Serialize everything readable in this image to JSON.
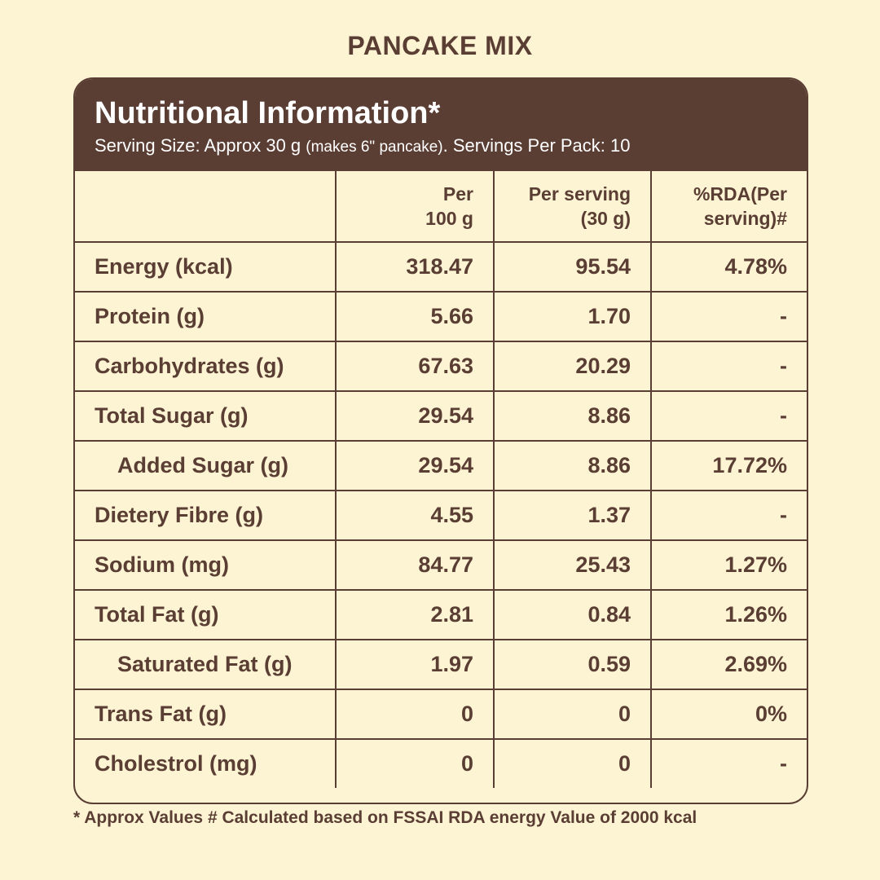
{
  "product_name": "PANCAKE MIX",
  "title": "Nutritional Information*",
  "serving_size_label": "Serving Size: Approx 30 g",
  "serving_note": "(makes 6\" pancake)",
  "servings_per_pack": ". Servings Per Pack: 10",
  "columns": [
    "",
    "Per\n100 g",
    "Per serving\n(30 g)",
    "%RDA(Per\nserving)#"
  ],
  "rows": [
    {
      "name": "Energy (kcal)",
      "per100": "318.47",
      "serving": "95.54",
      "rda": "4.78%",
      "indent": false
    },
    {
      "name": "Protein (g)",
      "per100": "5.66",
      "serving": "1.70",
      "rda": "-",
      "indent": false
    },
    {
      "name": "Carbohydrates (g)",
      "per100": "67.63",
      "serving": "20.29",
      "rda": "-",
      "indent": false
    },
    {
      "name": "Total Sugar (g)",
      "per100": "29.54",
      "serving": "8.86",
      "rda": "-",
      "indent": false
    },
    {
      "name": "Added Sugar (g)",
      "per100": "29.54",
      "serving": "8.86",
      "rda": "17.72%",
      "indent": true
    },
    {
      "name": "Dietery Fibre (g)",
      "per100": "4.55",
      "serving": "1.37",
      "rda": "-",
      "indent": false
    },
    {
      "name": "Sodium (mg)",
      "per100": "84.77",
      "serving": "25.43",
      "rda": "1.27%",
      "indent": false
    },
    {
      "name": "Total Fat (g)",
      "per100": "2.81",
      "serving": "0.84",
      "rda": "1.26%",
      "indent": false
    },
    {
      "name": "Saturated Fat (g)",
      "per100": "1.97",
      "serving": "0.59",
      "rda": "2.69%",
      "indent": true
    },
    {
      "name": "Trans Fat (g)",
      "per100": "0",
      "serving": "0",
      "rda": "0%",
      "indent": false
    },
    {
      "name": "Cholestrol (mg)",
      "per100": "0",
      "serving": "0",
      "rda": "-",
      "indent": false
    }
  ],
  "footnote": "* Approx Values # Calculated based on FSSAI RDA energy Value of 2000 kcal",
  "colors": {
    "background": "#fdf4d4",
    "brown": "#5a3d33"
  }
}
